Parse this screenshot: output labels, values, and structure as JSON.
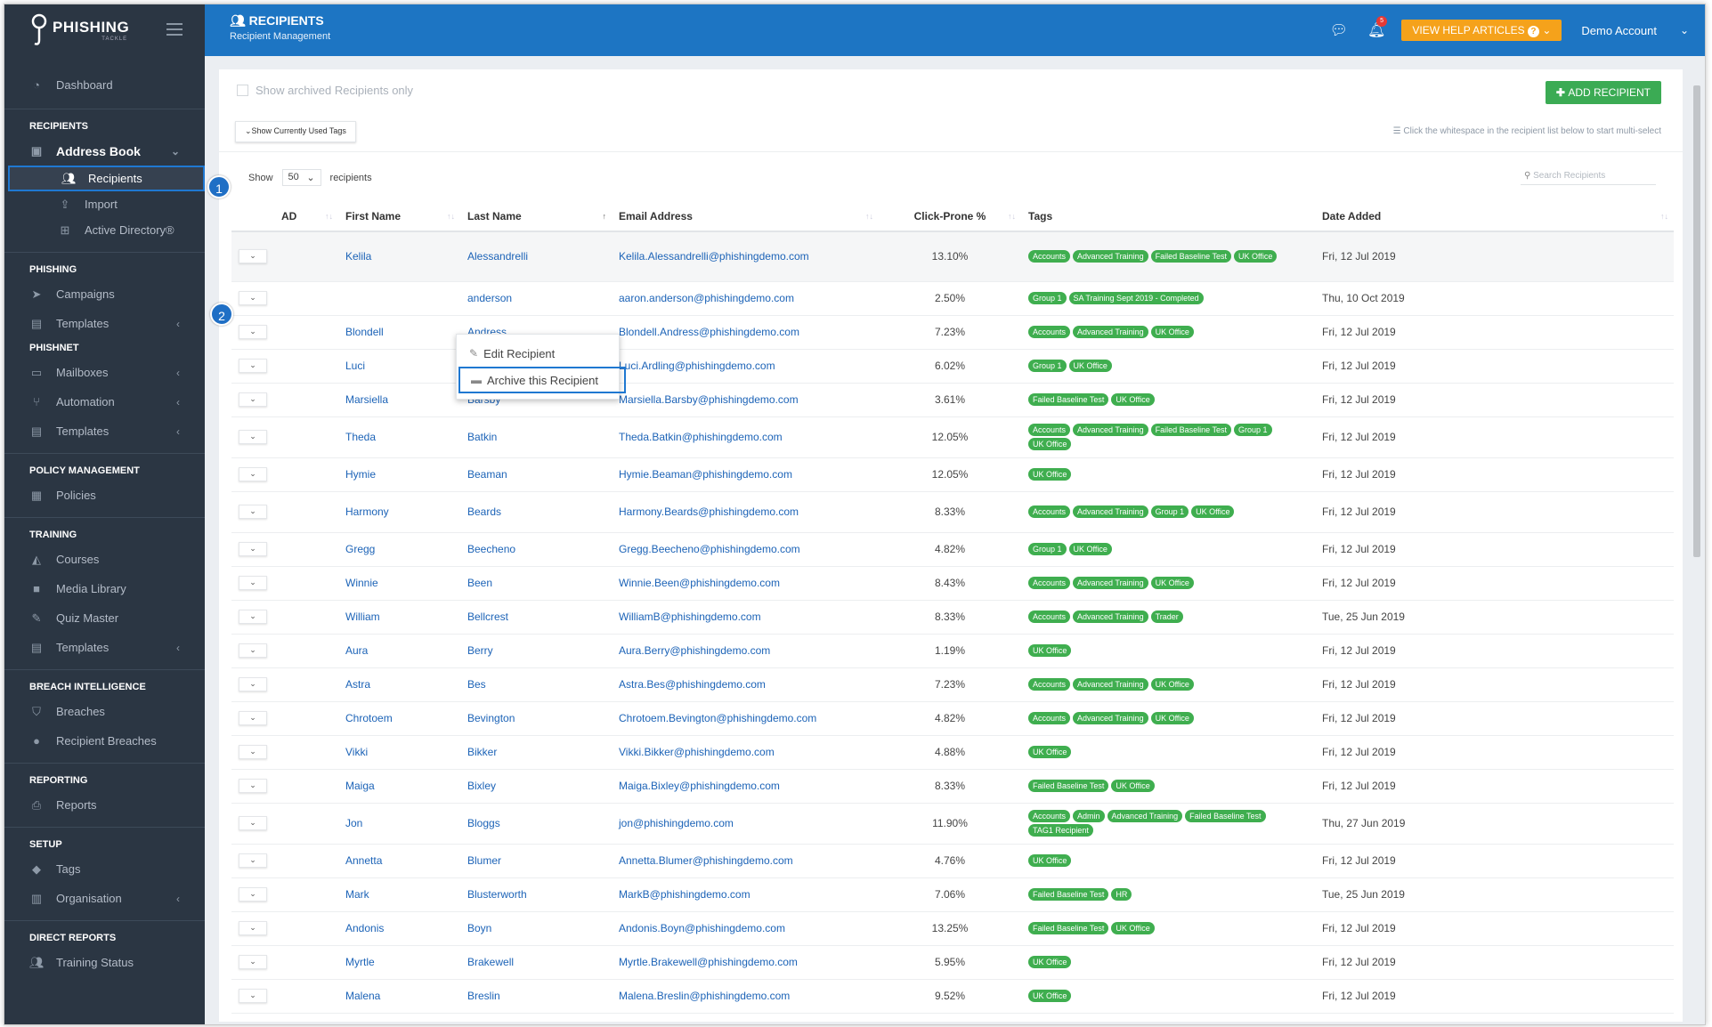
{
  "sidebar": {
    "logo": "PHISHING",
    "logo_sub": "TACKLE",
    "dashboard": "Dashboard",
    "sections": {
      "recipients": "RECIPIENTS",
      "phishing": "PHISHING",
      "phishnet": "PHISHNET",
      "policy": "POLICY MANAGEMENT",
      "training": "TRAINING",
      "breach": "BREACH INTELLIGENCE",
      "reporting": "REPORTING",
      "setup": "SETUP",
      "direct": "DIRECT REPORTS"
    },
    "address_book": "Address Book",
    "recipients": "Recipients",
    "import": "Import",
    "active_directory": "Active Directory®",
    "campaigns": "Campaigns",
    "templates": "Templates",
    "mailboxes": "Mailboxes",
    "automation": "Automation",
    "policies": "Policies",
    "courses": "Courses",
    "media_library": "Media Library",
    "quiz_master": "Quiz Master",
    "breaches": "Breaches",
    "recipient_breaches": "Recipient Breaches",
    "reports": "Reports",
    "tags": "Tags",
    "organisation": "Organisation",
    "training_status": "Training Status"
  },
  "topbar": {
    "title": "RECIPIENTS",
    "subtitle": "Recipient Management",
    "help": "VIEW HELP ARTICLES",
    "help_q": "?",
    "notif_count": "5",
    "account": "Demo Account"
  },
  "callouts": {
    "one": "1",
    "two": "2"
  },
  "panel": {
    "archived_label": "Show archived Recipients only",
    "add_button": "ADD RECIPIENT",
    "tags_button": "Show Currently Used Tags",
    "multi_hint": "Click the whitespace in the recipient list below to start multi-select",
    "show": "Show",
    "page_size": "50",
    "recipients": "recipients",
    "search_placeholder": "Search Recipients"
  },
  "columns": {
    "ad": "AD",
    "first": "First Name",
    "last": "Last Name",
    "email": "Email Address",
    "click": "Click-Prone %",
    "tags": "Tags",
    "date": "Date Added"
  },
  "menu": {
    "edit": "Edit Recipient",
    "archive": "Archive this Recipient"
  },
  "rows": [
    {
      "first": "Kelila",
      "last": "Alessandrelli",
      "email": "Kelila.Alessandrelli@phishingdemo.com",
      "pct": "13.10%",
      "tags": [
        "Accounts",
        "Advanced Training",
        "Failed Baseline Test",
        "UK Office"
      ],
      "date": "Fri, 12 Jul 2019"
    },
    {
      "first": "",
      "last": "anderson",
      "email": "aaron.anderson@phishingdemo.com",
      "pct": "2.50%",
      "tags": [
        "Group 1",
        "SA Training Sept 2019 - Completed"
      ],
      "date": "Thu, 10 Oct 2019"
    },
    {
      "first": "Blondell",
      "last": "Andress",
      "email": "Blondell.Andress@phishingdemo.com",
      "pct": "7.23%",
      "tags": [
        "Accounts",
        "Advanced Training",
        "UK Office"
      ],
      "date": "Fri, 12 Jul 2019"
    },
    {
      "first": "Luci",
      "last": "Ardling",
      "email": "Luci.Ardling@phishingdemo.com",
      "pct": "6.02%",
      "tags": [
        "Group 1",
        "UK Office"
      ],
      "date": "Fri, 12 Jul 2019"
    },
    {
      "first": "Marsiella",
      "last": "Barsby",
      "email": "Marsiella.Barsby@phishingdemo.com",
      "pct": "3.61%",
      "tags": [
        "Failed Baseline Test",
        "UK Office"
      ],
      "date": "Fri, 12 Jul 2019"
    },
    {
      "first": "Theda",
      "last": "Batkin",
      "email": "Theda.Batkin@phishingdemo.com",
      "pct": "12.05%",
      "tags": [
        "Accounts",
        "Advanced Training",
        "Failed Baseline Test",
        "Group 1",
        "UK Office"
      ],
      "date": "Fri, 12 Jul 2019"
    },
    {
      "first": "Hymie",
      "last": "Beaman",
      "email": "Hymie.Beaman@phishingdemo.com",
      "pct": "12.05%",
      "tags": [
        "UK Office"
      ],
      "date": "Fri, 12 Jul 2019"
    },
    {
      "first": "Harmony",
      "last": "Beards",
      "email": "Harmony.Beards@phishingdemo.com",
      "pct": "8.33%",
      "tags": [
        "Accounts",
        "Advanced Training",
        "Group 1",
        "UK Office"
      ],
      "date": "Fri, 12 Jul 2019"
    },
    {
      "first": "Gregg",
      "last": "Beecheno",
      "email": "Gregg.Beecheno@phishingdemo.com",
      "pct": "4.82%",
      "tags": [
        "Group 1",
        "UK Office"
      ],
      "date": "Fri, 12 Jul 2019"
    },
    {
      "first": "Winnie",
      "last": "Been",
      "email": "Winnie.Been@phishingdemo.com",
      "pct": "8.43%",
      "tags": [
        "Accounts",
        "Advanced Training",
        "UK Office"
      ],
      "date": "Fri, 12 Jul 2019"
    },
    {
      "first": "William",
      "last": "Bellcrest",
      "email": "WilliamB@phishingdemo.com",
      "pct": "8.33%",
      "tags": [
        "Accounts",
        "Advanced Training",
        "Trader"
      ],
      "date": "Tue, 25 Jun 2019"
    },
    {
      "first": "Aura",
      "last": "Berry",
      "email": "Aura.Berry@phishingdemo.com",
      "pct": "1.19%",
      "tags": [
        "UK Office"
      ],
      "date": "Fri, 12 Jul 2019"
    },
    {
      "first": "Astra",
      "last": "Bes",
      "email": "Astra.Bes@phishingdemo.com",
      "pct": "7.23%",
      "tags": [
        "Accounts",
        "Advanced Training",
        "UK Office"
      ],
      "date": "Fri, 12 Jul 2019"
    },
    {
      "first": "Chrotoem",
      "last": "Bevington",
      "email": "Chrotoem.Bevington@phishingdemo.com",
      "pct": "4.82%",
      "tags": [
        "Accounts",
        "Advanced Training",
        "UK Office"
      ],
      "date": "Fri, 12 Jul 2019"
    },
    {
      "first": "Vikki",
      "last": "Bikker",
      "email": "Vikki.Bikker@phishingdemo.com",
      "pct": "4.88%",
      "tags": [
        "UK Office"
      ],
      "date": "Fri, 12 Jul 2019"
    },
    {
      "first": "Maiga",
      "last": "Bixley",
      "email": "Maiga.Bixley@phishingdemo.com",
      "pct": "8.33%",
      "tags": [
        "Failed Baseline Test",
        "UK Office"
      ],
      "date": "Fri, 12 Jul 2019"
    },
    {
      "first": "Jon",
      "last": "Bloggs",
      "email": "jon@phishingdemo.com",
      "pct": "11.90%",
      "tags": [
        "Accounts",
        "Admin",
        "Advanced Training",
        "Failed Baseline Test",
        "TAG1 Recipient"
      ],
      "date": "Thu, 27 Jun 2019"
    },
    {
      "first": "Annetta",
      "last": "Blumer",
      "email": "Annetta.Blumer@phishingdemo.com",
      "pct": "4.76%",
      "tags": [
        "UK Office"
      ],
      "date": "Fri, 12 Jul 2019"
    },
    {
      "first": "Mark",
      "last": "Blusterworth",
      "email": "MarkB@phishingdemo.com",
      "pct": "7.06%",
      "tags": [
        "Failed Baseline Test",
        "HR"
      ],
      "date": "Tue, 25 Jun 2019"
    },
    {
      "first": "Andonis",
      "last": "Boyn",
      "email": "Andonis.Boyn@phishingdemo.com",
      "pct": "13.25%",
      "tags": [
        "Failed Baseline Test",
        "UK Office"
      ],
      "date": "Fri, 12 Jul 2019"
    },
    {
      "first": "Myrtle",
      "last": "Brakewell",
      "email": "Myrtle.Brakewell@phishingdemo.com",
      "pct": "5.95%",
      "tags": [
        "UK Office"
      ],
      "date": "Fri, 12 Jul 2019"
    },
    {
      "first": "Malena",
      "last": "Breslin",
      "email": "Malena.Breslin@phishingdemo.com",
      "pct": "9.52%",
      "tags": [
        "UK Office"
      ],
      "date": "Fri, 12 Jul 2019"
    }
  ]
}
